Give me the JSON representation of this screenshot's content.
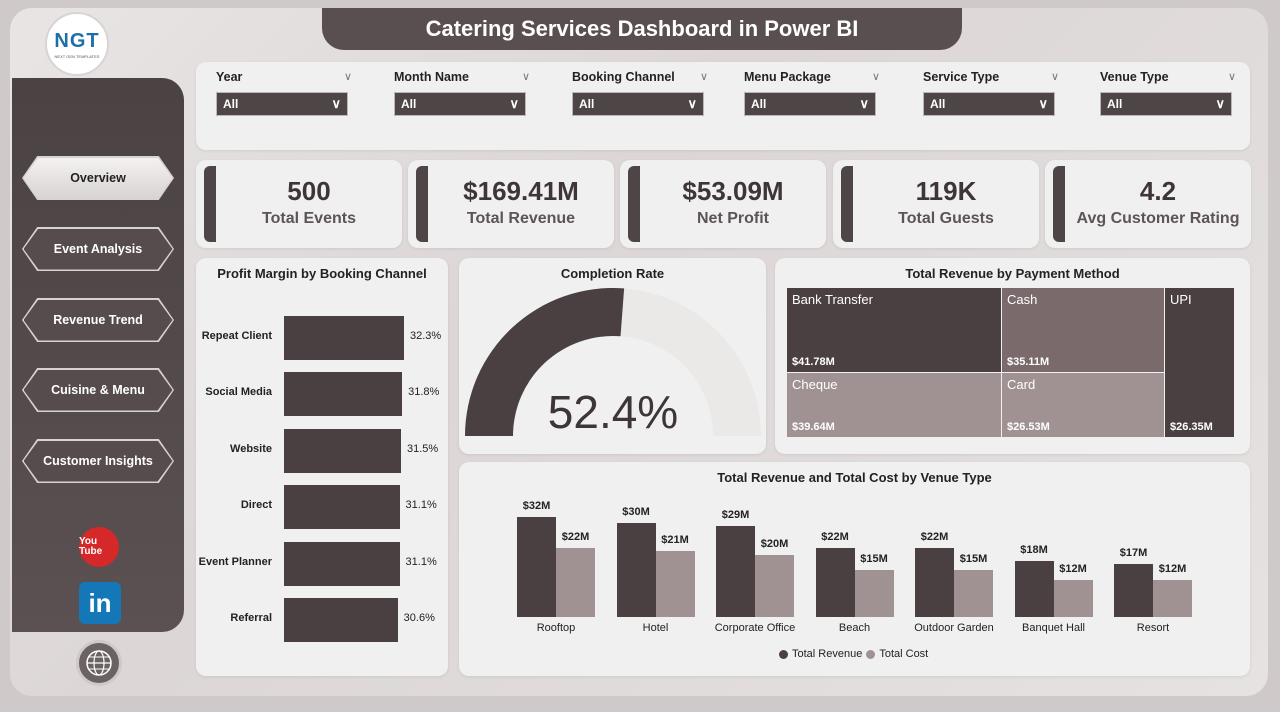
{
  "header": {
    "title": "Catering Services Dashboard in Power BI"
  },
  "logo": {
    "text": "NGT",
    "subtext": "NEXT GEN TEMPLATES"
  },
  "nav": [
    {
      "label": "Overview",
      "active": true
    },
    {
      "label": "Event Analysis",
      "active": false
    },
    {
      "label": "Revenue Trend",
      "active": false
    },
    {
      "label": "Cuisine & Menu",
      "active": false
    },
    {
      "label": "Customer Insights",
      "active": false
    }
  ],
  "social": {
    "youtube": "You Tube",
    "linkedin": "in",
    "web": "www"
  },
  "filters": [
    {
      "label": "Year",
      "value": "All"
    },
    {
      "label": "Month Name",
      "value": "All"
    },
    {
      "label": "Booking Channel",
      "value": "All"
    },
    {
      "label": "Menu Package",
      "value": "All"
    },
    {
      "label": "Service Type",
      "value": "All"
    },
    {
      "label": "Venue Type",
      "value": "All"
    }
  ],
  "kpis": [
    {
      "value": "500",
      "label": "Total Events"
    },
    {
      "value": "$169.41M",
      "label": "Total Revenue"
    },
    {
      "value": "$53.09M",
      "label": "Net Profit"
    },
    {
      "value": "119K",
      "label": "Total Guests"
    },
    {
      "value": "4.2",
      "label": "Avg Customer Rating"
    }
  ],
  "colors": {
    "dark": "#4a4042",
    "light": "#a09293",
    "mid": "#7b6a6c",
    "accent": "#4e4546"
  },
  "chart_data": [
    {
      "type": "bar",
      "orientation": "horizontal",
      "title": "Profit Margin by Booking Channel",
      "categories": [
        "Repeat Client",
        "Social Media",
        "Website",
        "Direct",
        "Event Planner",
        "Referral"
      ],
      "values": [
        32.3,
        31.8,
        31.5,
        31.1,
        31.1,
        30.6
      ],
      "labels": [
        "32.3%",
        "31.8%",
        "31.5%",
        "31.1%",
        "31.1%",
        "30.6%"
      ]
    },
    {
      "type": "gauge",
      "title": "Completion Rate",
      "value": 52.4,
      "label": "52.4%"
    },
    {
      "type": "treemap",
      "title": "Total Revenue by Payment Method",
      "items": [
        {
          "name": "Bank Transfer",
          "value": 41.78,
          "label": "$41.78M"
        },
        {
          "name": "Cheque",
          "value": 39.64,
          "label": "$39.64M"
        },
        {
          "name": "Cash",
          "value": 35.11,
          "label": "$35.11M"
        },
        {
          "name": "Card",
          "value": 26.53,
          "label": "$26.53M"
        },
        {
          "name": "UPI",
          "value": 26.35,
          "label": "$26.35M"
        }
      ]
    },
    {
      "type": "bar",
      "title": "Total Revenue and Total Cost by Venue Type",
      "categories": [
        "Rooftop",
        "Hotel",
        "Corporate Office",
        "Beach",
        "Outdoor Garden",
        "Banquet Hall",
        "Resort"
      ],
      "series": [
        {
          "name": "Total Revenue",
          "values": [
            32,
            30,
            29,
            22,
            22,
            18,
            17
          ],
          "labels": [
            "$32M",
            "$30M",
            "$29M",
            "$22M",
            "$22M",
            "$18M",
            "$17M"
          ]
        },
        {
          "name": "Total Cost",
          "values": [
            22,
            21,
            20,
            15,
            15,
            12,
            12
          ],
          "labels": [
            "$22M",
            "$21M",
            "$20M",
            "$15M",
            "$15M",
            "$12M",
            "$12M"
          ]
        }
      ]
    }
  ]
}
